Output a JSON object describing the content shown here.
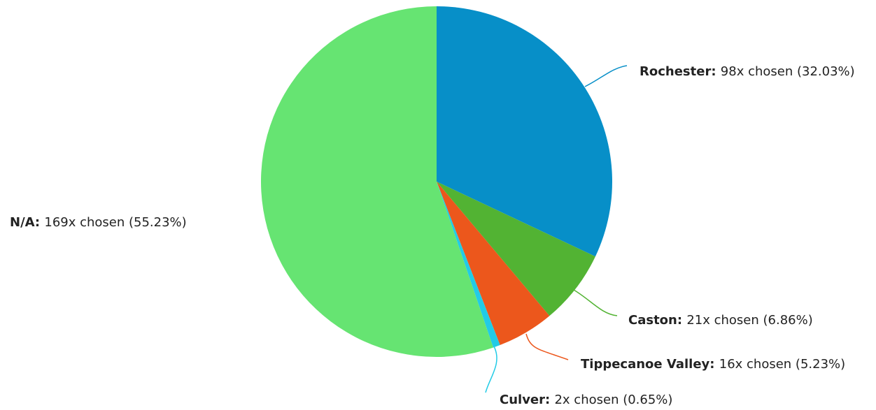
{
  "chart_data": {
    "type": "pie",
    "title": "",
    "series": [
      {
        "slices": [
          {
            "label": "Rochester",
            "count": 98,
            "percent": 32.03,
            "value_text": "98x chosen (32.03%)",
            "color": "#078fc8"
          },
          {
            "label": "Caston",
            "count": 21,
            "percent": 6.86,
            "value_text": "21x chosen (6.86%)",
            "color": "#52b333"
          },
          {
            "label": "Tippecanoe Valley",
            "count": 16,
            "percent": 5.23,
            "value_text": "16x chosen (5.23%)",
            "color": "#ec571c"
          },
          {
            "label": "Culver",
            "count": 2,
            "percent": 0.65,
            "value_text": "2x chosen (0.65%)",
            "color": "#22cbe6"
          },
          {
            "label": "N/A",
            "count": 169,
            "percent": 55.23,
            "value_text": "169x chosen (55.23%)",
            "color": "#66e472"
          }
        ]
      }
    ]
  }
}
